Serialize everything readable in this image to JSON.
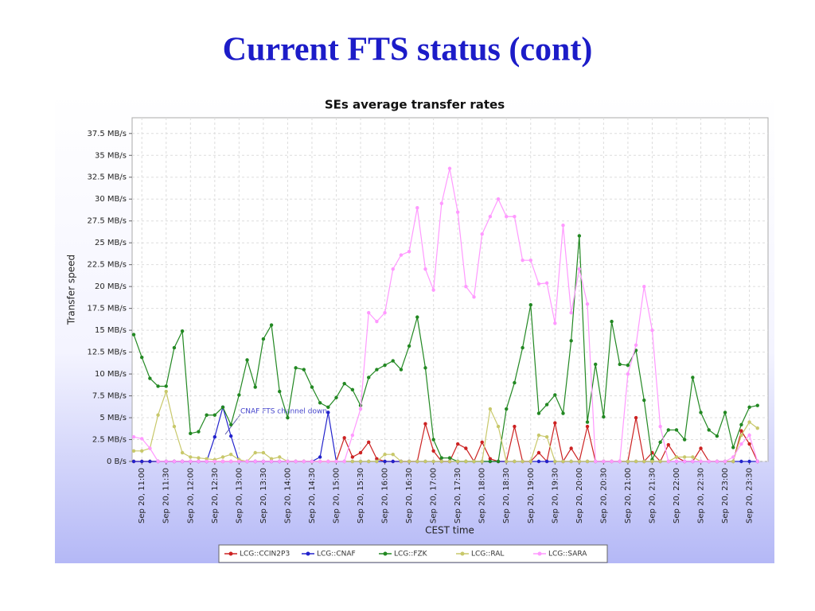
{
  "slide_title": "Current FTS status (cont)",
  "chart_data": {
    "type": "line",
    "title": "SEs average transfer rates",
    "x_label": "CEST time",
    "y_label": "Transfer speed",
    "annotation": "CNAF FTS channel down",
    "xlim": [
      648,
      1433
    ],
    "ylim": [
      0,
      39.3
    ],
    "xticks": [
      {
        "value": 660,
        "label": "Sep 20, 11:00"
      },
      {
        "value": 690,
        "label": "Sep 20, 11:30"
      },
      {
        "value": 720,
        "label": "Sep 20, 12:00"
      },
      {
        "value": 750,
        "label": "Sep 20, 12:30"
      },
      {
        "value": 780,
        "label": "Sep 20, 13:00"
      },
      {
        "value": 810,
        "label": "Sep 20, 13:30"
      },
      {
        "value": 840,
        "label": "Sep 20, 14:00"
      },
      {
        "value": 870,
        "label": "Sep 20, 14:30"
      },
      {
        "value": 900,
        "label": "Sep 20, 15:00"
      },
      {
        "value": 930,
        "label": "Sep 20, 15:30"
      },
      {
        "value": 960,
        "label": "Sep 20, 16:00"
      },
      {
        "value": 990,
        "label": "Sep 20, 16:30"
      },
      {
        "value": 1020,
        "label": "Sep 20, 17:00"
      },
      {
        "value": 1050,
        "label": "Sep 20, 17:30"
      },
      {
        "value": 1080,
        "label": "Sep 20, 18:00"
      },
      {
        "value": 1110,
        "label": "Sep 20, 18:30"
      },
      {
        "value": 1140,
        "label": "Sep 20, 19:00"
      },
      {
        "value": 1170,
        "label": "Sep 20, 19:30"
      },
      {
        "value": 1200,
        "label": "Sep 20, 20:00"
      },
      {
        "value": 1230,
        "label": "Sep 20, 20:30"
      },
      {
        "value": 1260,
        "label": "Sep 20, 21:00"
      },
      {
        "value": 1290,
        "label": "Sep 20, 21:30"
      },
      {
        "value": 1320,
        "label": "Sep 20, 22:00"
      },
      {
        "value": 1350,
        "label": "Sep 20, 22:30"
      },
      {
        "value": 1380,
        "label": "Sep 20, 23:00"
      },
      {
        "value": 1410,
        "label": "Sep 20, 23:30"
      }
    ],
    "yticks": [
      {
        "value": 0,
        "label": "0 B/s"
      },
      {
        "value": 2.5,
        "label": "2.5 MB/s"
      },
      {
        "value": 5,
        "label": "5 MB/s"
      },
      {
        "value": 7.5,
        "label": "7.5 MB/s"
      },
      {
        "value": 10,
        "label": "10 MB/s"
      },
      {
        "value": 12.5,
        "label": "12.5 MB/s"
      },
      {
        "value": 15,
        "label": "15 MB/s"
      },
      {
        "value": 17.5,
        "label": "17.5 MB/s"
      },
      {
        "value": 20,
        "label": "20 MB/s"
      },
      {
        "value": 22.5,
        "label": "22.5 MB/s"
      },
      {
        "value": 25,
        "label": "25 MB/s"
      },
      {
        "value": 27.5,
        "label": "27.5 MB/s"
      },
      {
        "value": 30,
        "label": "30 MB/s"
      },
      {
        "value": 32.5,
        "label": "32.5 MB/s"
      },
      {
        "value": 35,
        "label": "35 MB/s"
      },
      {
        "value": 37.5,
        "label": "37.5 MB/s"
      }
    ],
    "grid": true,
    "x": [
      650,
      660,
      670,
      680,
      690,
      700,
      710,
      720,
      730,
      740,
      750,
      760,
      770,
      780,
      790,
      800,
      810,
      820,
      830,
      840,
      850,
      860,
      870,
      880,
      890,
      900,
      910,
      920,
      930,
      940,
      950,
      960,
      970,
      980,
      990,
      1000,
      1010,
      1020,
      1030,
      1040,
      1050,
      1060,
      1070,
      1080,
      1090,
      1100,
      1110,
      1120,
      1130,
      1140,
      1150,
      1160,
      1170,
      1180,
      1190,
      1200,
      1210,
      1220,
      1230,
      1240,
      1250,
      1260,
      1270,
      1280,
      1290,
      1300,
      1310,
      1320,
      1330,
      1340,
      1350,
      1360,
      1370,
      1380,
      1390,
      1400,
      1410,
      1420,
      1430
    ],
    "series": [
      {
        "name": "LCG::CCIN2P3",
        "color": "#cc2222",
        "values": [
          0,
          0,
          0,
          0,
          0,
          0,
          0,
          0,
          0,
          0,
          0,
          0,
          0,
          0,
          0,
          0,
          0,
          0,
          0,
          0,
          0,
          0,
          0,
          0,
          0,
          0,
          2.7,
          0.5,
          1,
          2.2,
          0.3,
          0,
          0,
          0,
          0,
          0,
          4.3,
          1.2,
          0,
          0,
          2,
          1.5,
          0,
          2.2,
          0.3,
          0,
          0,
          4,
          0,
          0,
          1,
          0,
          4.4,
          0,
          1.5,
          0,
          4,
          0,
          0,
          0,
          0,
          0,
          5,
          0,
          1,
          0,
          1.9,
          0.5,
          0,
          0,
          1.5,
          0,
          0,
          0,
          0,
          3.5,
          2,
          0,
          null
        ]
      },
      {
        "name": "LCG::CNAF",
        "color": "#2222cc",
        "values": [
          0,
          0,
          0,
          0,
          0,
          0,
          0,
          0,
          0,
          0,
          2.8,
          6.2,
          2.9,
          0,
          0,
          0,
          0,
          0,
          0,
          0,
          0,
          0,
          0,
          0.5,
          5.6,
          0,
          0,
          0,
          0,
          0,
          0,
          0,
          0,
          0,
          0,
          0,
          0,
          0,
          0,
          0,
          0,
          0,
          0,
          0,
          0,
          0,
          0,
          0,
          0,
          0,
          0,
          0,
          0,
          0,
          0,
          0,
          0,
          0,
          0,
          0,
          0,
          0,
          0,
          0,
          0,
          0,
          0,
          0,
          0,
          0,
          0,
          0,
          0,
          0,
          0,
          0,
          0,
          0,
          null
        ]
      },
      {
        "name": "LCG::FZK",
        "color": "#228822",
        "values": [
          14.5,
          11.9,
          9.5,
          8.6,
          8.6,
          13,
          14.9,
          3.2,
          3.4,
          5.3,
          5.3,
          6.2,
          4.2,
          7.6,
          11.6,
          8.5,
          14,
          15.6,
          8,
          5,
          10.7,
          10.5,
          8.5,
          6.7,
          6.2,
          7.3,
          8.9,
          8.2,
          6.4,
          9.6,
          10.5,
          11,
          11.5,
          10.5,
          13.2,
          16.5,
          10.7,
          2.5,
          0.4,
          0.4,
          0,
          0,
          0,
          0,
          0,
          0,
          6,
          9,
          13,
          17.9,
          5.5,
          6.5,
          7.6,
          5.5,
          13.8,
          25.8,
          4.5,
          11.1,
          5.1,
          16,
          11.1,
          11,
          12.7,
          7,
          0.2,
          2.2,
          3.6,
          3.6,
          2.5,
          9.6,
          5.6,
          3.6,
          2.9,
          5.6,
          1.6,
          4.2,
          6.2,
          6.4,
          null
        ]
      },
      {
        "name": "LCG::RAL",
        "color": "#c8c86a",
        "values": [
          1.2,
          1.2,
          1.5,
          5.3,
          8,
          4,
          1,
          0.5,
          0.4,
          0.3,
          0.2,
          0.5,
          0.8,
          0.2,
          0,
          1,
          1,
          0.3,
          0.5,
          0,
          0,
          0,
          0,
          0,
          0,
          0,
          0,
          0,
          0,
          0,
          0,
          0.8,
          0.8,
          0,
          0,
          0,
          0,
          0,
          0,
          0,
          0,
          0,
          0,
          0,
          6,
          4,
          0,
          0,
          0,
          0,
          3,
          2.8,
          0,
          0,
          0,
          0,
          0,
          0,
          0,
          0,
          0,
          0,
          0,
          0,
          0,
          0,
          0,
          0.5,
          0.5,
          0.5,
          0,
          0,
          0,
          0,
          0,
          3,
          4.5,
          3.8,
          null
        ]
      },
      {
        "name": "LCG::SARA",
        "color": "#ff99ff",
        "values": [
          2.8,
          2.6,
          1.5,
          0,
          0,
          0,
          0,
          0,
          0,
          0,
          0,
          0,
          0,
          0,
          0,
          0,
          0,
          0,
          0,
          0,
          0,
          0,
          0,
          0,
          0,
          0,
          0,
          3,
          6,
          17,
          16,
          17,
          22,
          23.6,
          24,
          29,
          22,
          19.6,
          29.5,
          33.5,
          28.5,
          20,
          18.8,
          26,
          28,
          30,
          28,
          28,
          23,
          23,
          20.3,
          20.4,
          15.8,
          27,
          17,
          22,
          18,
          0,
          0,
          0,
          0,
          10,
          13.3,
          20,
          15,
          4,
          0,
          0,
          0,
          0,
          0,
          0,
          0,
          0,
          0.5,
          2,
          3,
          0,
          null
        ]
      }
    ]
  }
}
